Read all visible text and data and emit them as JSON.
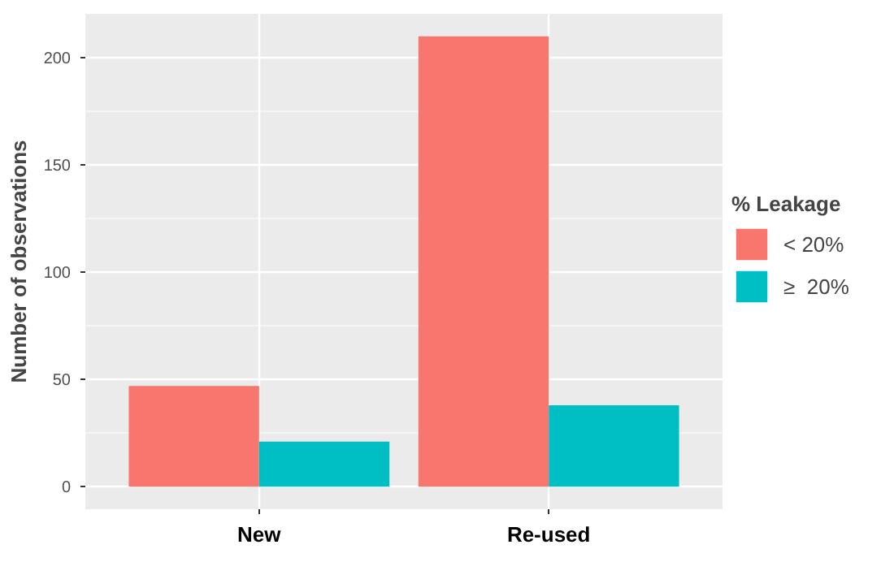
{
  "chart_data": {
    "type": "bar",
    "ylabel": "Number of observations",
    "legend_title": "% Leakage",
    "categories": [
      "New",
      "Re-used"
    ],
    "series": [
      {
        "name": "< 20%",
        "color": "#f8766d",
        "values": [
          47,
          210
        ]
      },
      {
        "name": "≥  20%",
        "color": "#00bfc4",
        "values": [
          21,
          38
        ]
      }
    ],
    "ylim": [
      -10.5,
      220.5
    ],
    "yticks": [
      0,
      50,
      100,
      150,
      200
    ],
    "grid": true,
    "legend": "right"
  }
}
